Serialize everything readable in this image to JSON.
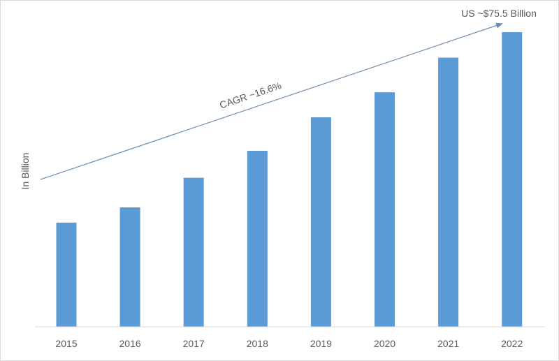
{
  "chart_data": {
    "type": "bar",
    "categories": [
      "2015",
      "2016",
      "2017",
      "2018",
      "2019",
      "2020",
      "2021",
      "2022"
    ],
    "values": [
      26.7,
      30.6,
      38.2,
      45.1,
      53.7,
      60.1,
      69.0,
      75.5
    ],
    "ylabel": "In Billion",
    "xlabel": "",
    "title": "",
    "ylim": [
      0,
      80
    ],
    "grid": false,
    "legend": "none",
    "bar_color": "#5b9bd5",
    "arrow_color": "#6e8fb3",
    "annotations": {
      "cagr": "CAGR ~16.6%",
      "end_value": "US ~$75.5 Billion"
    }
  }
}
